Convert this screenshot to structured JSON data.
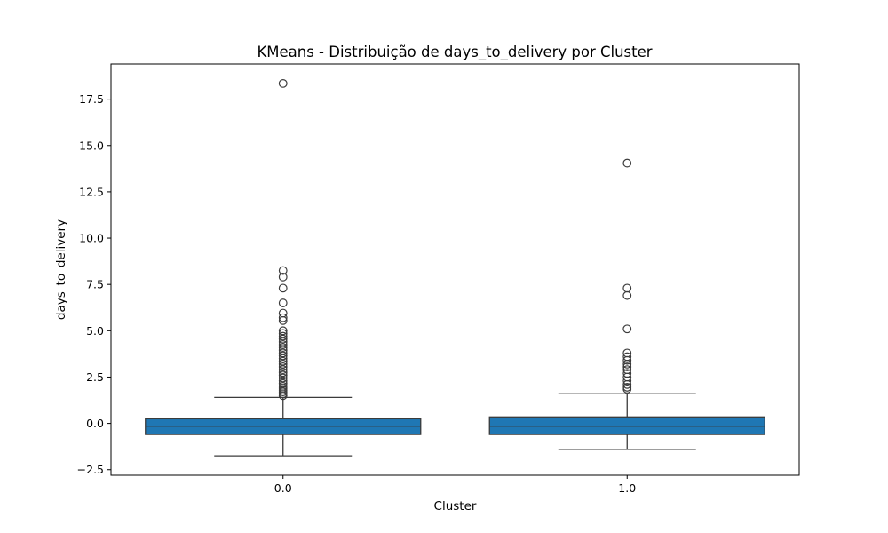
{
  "chart_data": {
    "type": "box",
    "title": "KMeans - Distribuição de days_to_delivery por Cluster",
    "xlabel": "Cluster",
    "ylabel": "days_to_delivery",
    "ylim": [
      -2.8,
      19.4
    ],
    "yticks": [
      -2.5,
      0.0,
      2.5,
      5.0,
      7.5,
      10.0,
      12.5,
      15.0,
      17.5
    ],
    "ytick_labels": [
      "−2.5",
      "0.0",
      "2.5",
      "5.0",
      "7.5",
      "10.0",
      "12.5",
      "15.0",
      "17.5"
    ],
    "grid": false,
    "box_color": "#1f77b4",
    "line_color": "#3b3b3b",
    "categories": [
      "0.0",
      "1.0"
    ],
    "boxes": [
      {
        "category": "0.0",
        "whisker_low": -1.75,
        "q1": -0.6,
        "median": -0.15,
        "q3": 0.25,
        "whisker_high": 1.4,
        "outliers": [
          18.35,
          8.25,
          7.9,
          7.3,
          6.5,
          5.95,
          5.7,
          5.55,
          5.0,
          4.85,
          4.7,
          4.55,
          4.4,
          4.25,
          4.1,
          3.95,
          3.8,
          3.65,
          3.5,
          3.35,
          3.2,
          3.05,
          2.9,
          2.75,
          2.6,
          2.45,
          2.3,
          2.15,
          2.0,
          1.9,
          1.8,
          1.7,
          1.6,
          1.5
        ]
      },
      {
        "category": "1.0",
        "whisker_low": -1.4,
        "q1": -0.6,
        "median": -0.15,
        "q3": 0.35,
        "whisker_high": 1.6,
        "outliers": [
          14.05,
          7.3,
          6.9,
          5.1,
          3.8,
          3.6,
          3.4,
          3.2,
          3.05,
          2.9,
          2.7,
          2.5,
          2.3,
          2.1,
          1.95,
          1.85
        ]
      }
    ]
  }
}
